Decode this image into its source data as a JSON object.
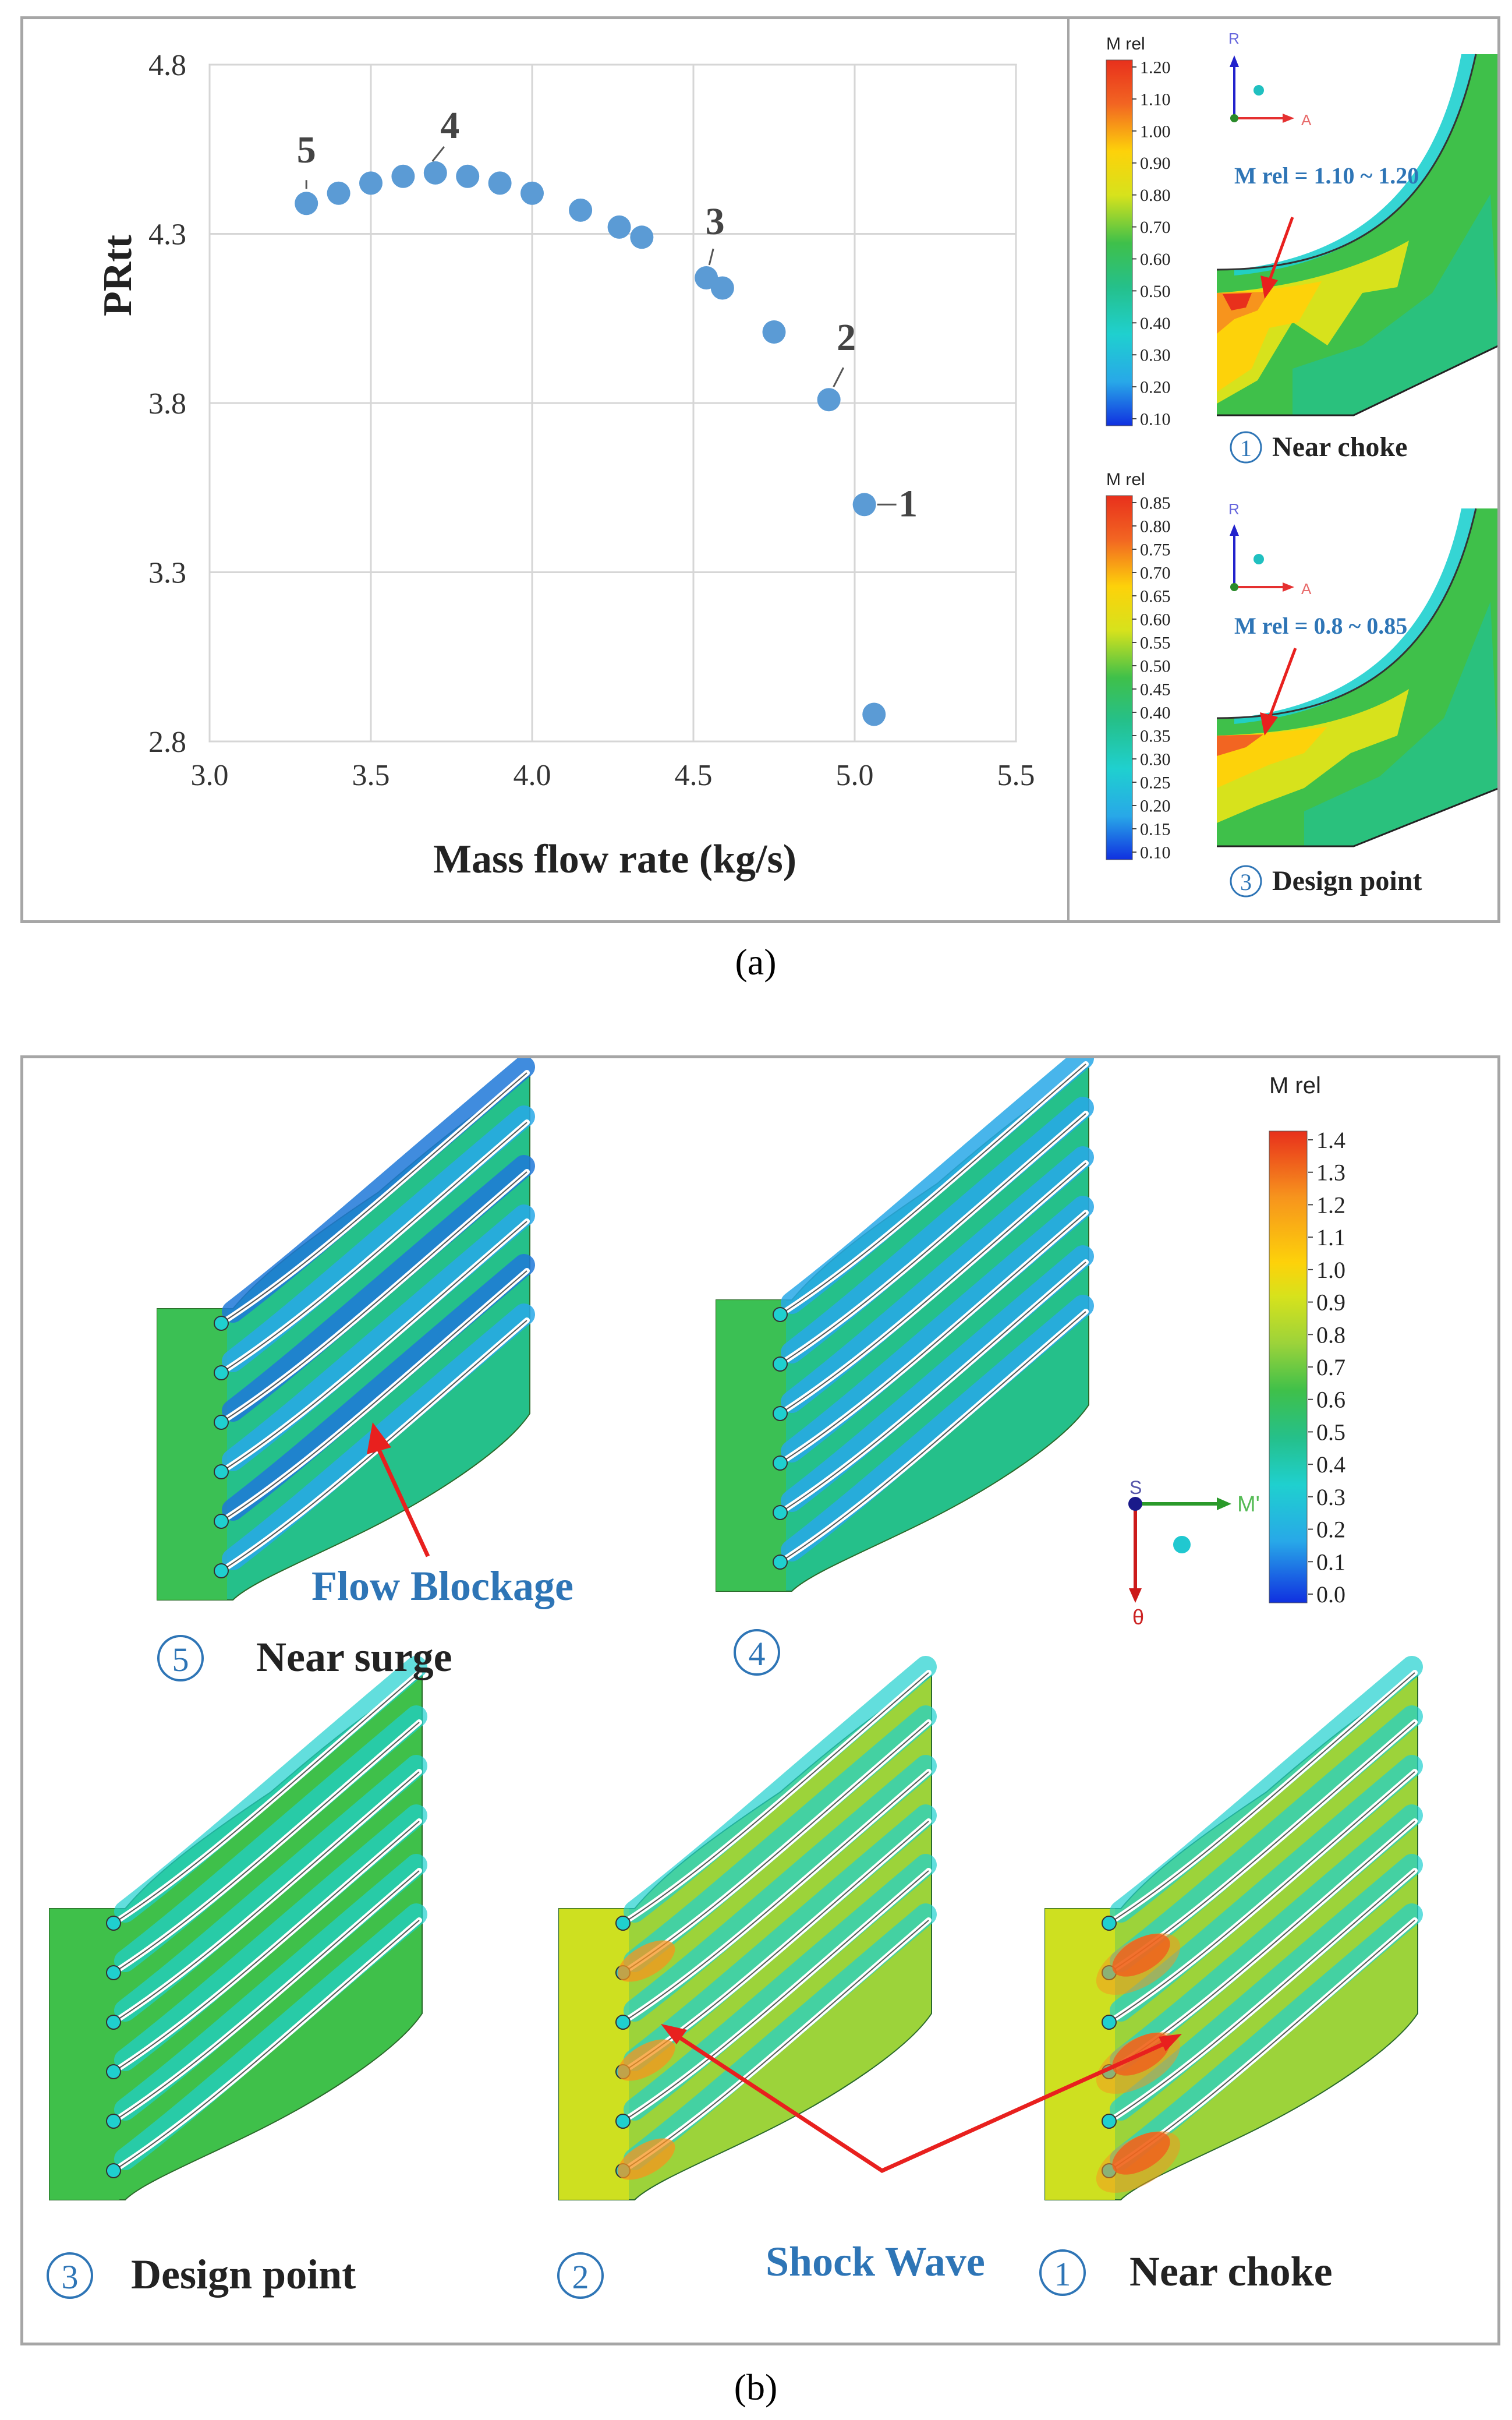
{
  "chart_data": [
    {
      "type": "scatter",
      "title": "",
      "xlabel": "Mass flow rate (kg/s)",
      "ylabel": "PRtt",
      "xlim": [
        3.0,
        5.5
      ],
      "ylim": [
        2.8,
        4.8
      ],
      "xticks": [
        "3.0",
        "3.5",
        "4.0",
        "4.5",
        "5.0",
        "5.5"
      ],
      "yticks": [
        "2.8",
        "3.3",
        "3.8",
        "4.3",
        "4.8"
      ],
      "xtick_values": [
        3.0,
        3.5,
        4.0,
        4.5,
        5.0,
        5.5
      ],
      "ytick_values": [
        2.8,
        3.3,
        3.8,
        4.3,
        4.8
      ],
      "grid": true,
      "color": "#5b9bd5",
      "points": [
        {
          "x": 3.3,
          "y": 4.39
        },
        {
          "x": 3.4,
          "y": 4.42
        },
        {
          "x": 3.5,
          "y": 4.45
        },
        {
          "x": 3.6,
          "y": 4.47
        },
        {
          "x": 3.7,
          "y": 4.48
        },
        {
          "x": 3.8,
          "y": 4.47
        },
        {
          "x": 3.9,
          "y": 4.45
        },
        {
          "x": 4.0,
          "y": 4.42
        },
        {
          "x": 4.15,
          "y": 4.37
        },
        {
          "x": 4.27,
          "y": 4.32
        },
        {
          "x": 4.34,
          "y": 4.29
        },
        {
          "x": 4.54,
          "y": 4.17
        },
        {
          "x": 4.59,
          "y": 4.14
        },
        {
          "x": 4.75,
          "y": 4.01
        },
        {
          "x": 4.92,
          "y": 3.81
        },
        {
          "x": 5.03,
          "y": 3.5
        },
        {
          "x": 5.06,
          "y": 2.88
        }
      ],
      "annotations": [
        {
          "label": "5",
          "x": 3.3,
          "y": 4.39
        },
        {
          "label": "4",
          "x": 3.7,
          "y": 4.48
        },
        {
          "label": "3",
          "x": 4.54,
          "y": 4.17
        },
        {
          "label": "2",
          "x": 4.92,
          "y": 3.81
        },
        {
          "label": "1",
          "x": 5.03,
          "y": 3.5
        }
      ]
    }
  ],
  "panel_a": {
    "caption": "(a)",
    "contour_top": {
      "legend_title": "M rel",
      "legend_values": [
        "1.20",
        "1.10",
        "1.00",
        "0.90",
        "0.80",
        "0.70",
        "0.60",
        "0.50",
        "0.40",
        "0.30",
        "0.20",
        "0.10"
      ],
      "annotation": "M rel = 1.10 ~ 1.20",
      "circle_number": "1",
      "label": "Near choke",
      "axis_r": "R",
      "axis_a": "A"
    },
    "contour_bottom": {
      "legend_title": "M rel",
      "legend_values": [
        "0.85",
        "0.80",
        "0.75",
        "0.70",
        "0.65",
        "0.60",
        "0.55",
        "0.50",
        "0.45",
        "0.40",
        "0.35",
        "0.30",
        "0.25",
        "0.20",
        "0.15",
        "0.10"
      ],
      "annotation": "M rel = 0.8 ~ 0.85",
      "circle_number": "3",
      "label": "Design point",
      "axis_r": "R",
      "axis_a": "A"
    }
  },
  "panel_b": {
    "caption": "(b)",
    "legend_title": "M rel",
    "legend_values": [
      "1.4",
      "1.3",
      "1.2",
      "1.1",
      "1.0",
      "0.9",
      "0.8",
      "0.7",
      "0.6",
      "0.5",
      "0.4",
      "0.3",
      "0.2",
      "0.1",
      "0.0"
    ],
    "axis_s": "S",
    "axis_m": "M'",
    "axis_theta": "θ",
    "flow_blockage": "Flow Blockage",
    "shock_wave": "Shock Wave",
    "cascades": [
      {
        "num": "5",
        "label": "Near surge"
      },
      {
        "num": "4",
        "label": ""
      },
      {
        "num": "3",
        "label": "Design point"
      },
      {
        "num": "2",
        "label": ""
      },
      {
        "num": "1",
        "label": "Near choke"
      }
    ]
  },
  "colors": {
    "marker": "#5b9bd5",
    "arrow": "#e8201e",
    "annotation_blue": "#2e75b6",
    "legend_scale": [
      "#e8301c",
      "#f26522",
      "#f7941d",
      "#fdd20a",
      "#d7e21c",
      "#9cd33a",
      "#3fc04a",
      "#25c08a",
      "#1fd0cf",
      "#28a8e8",
      "#1f78d8",
      "#1030e0"
    ]
  }
}
